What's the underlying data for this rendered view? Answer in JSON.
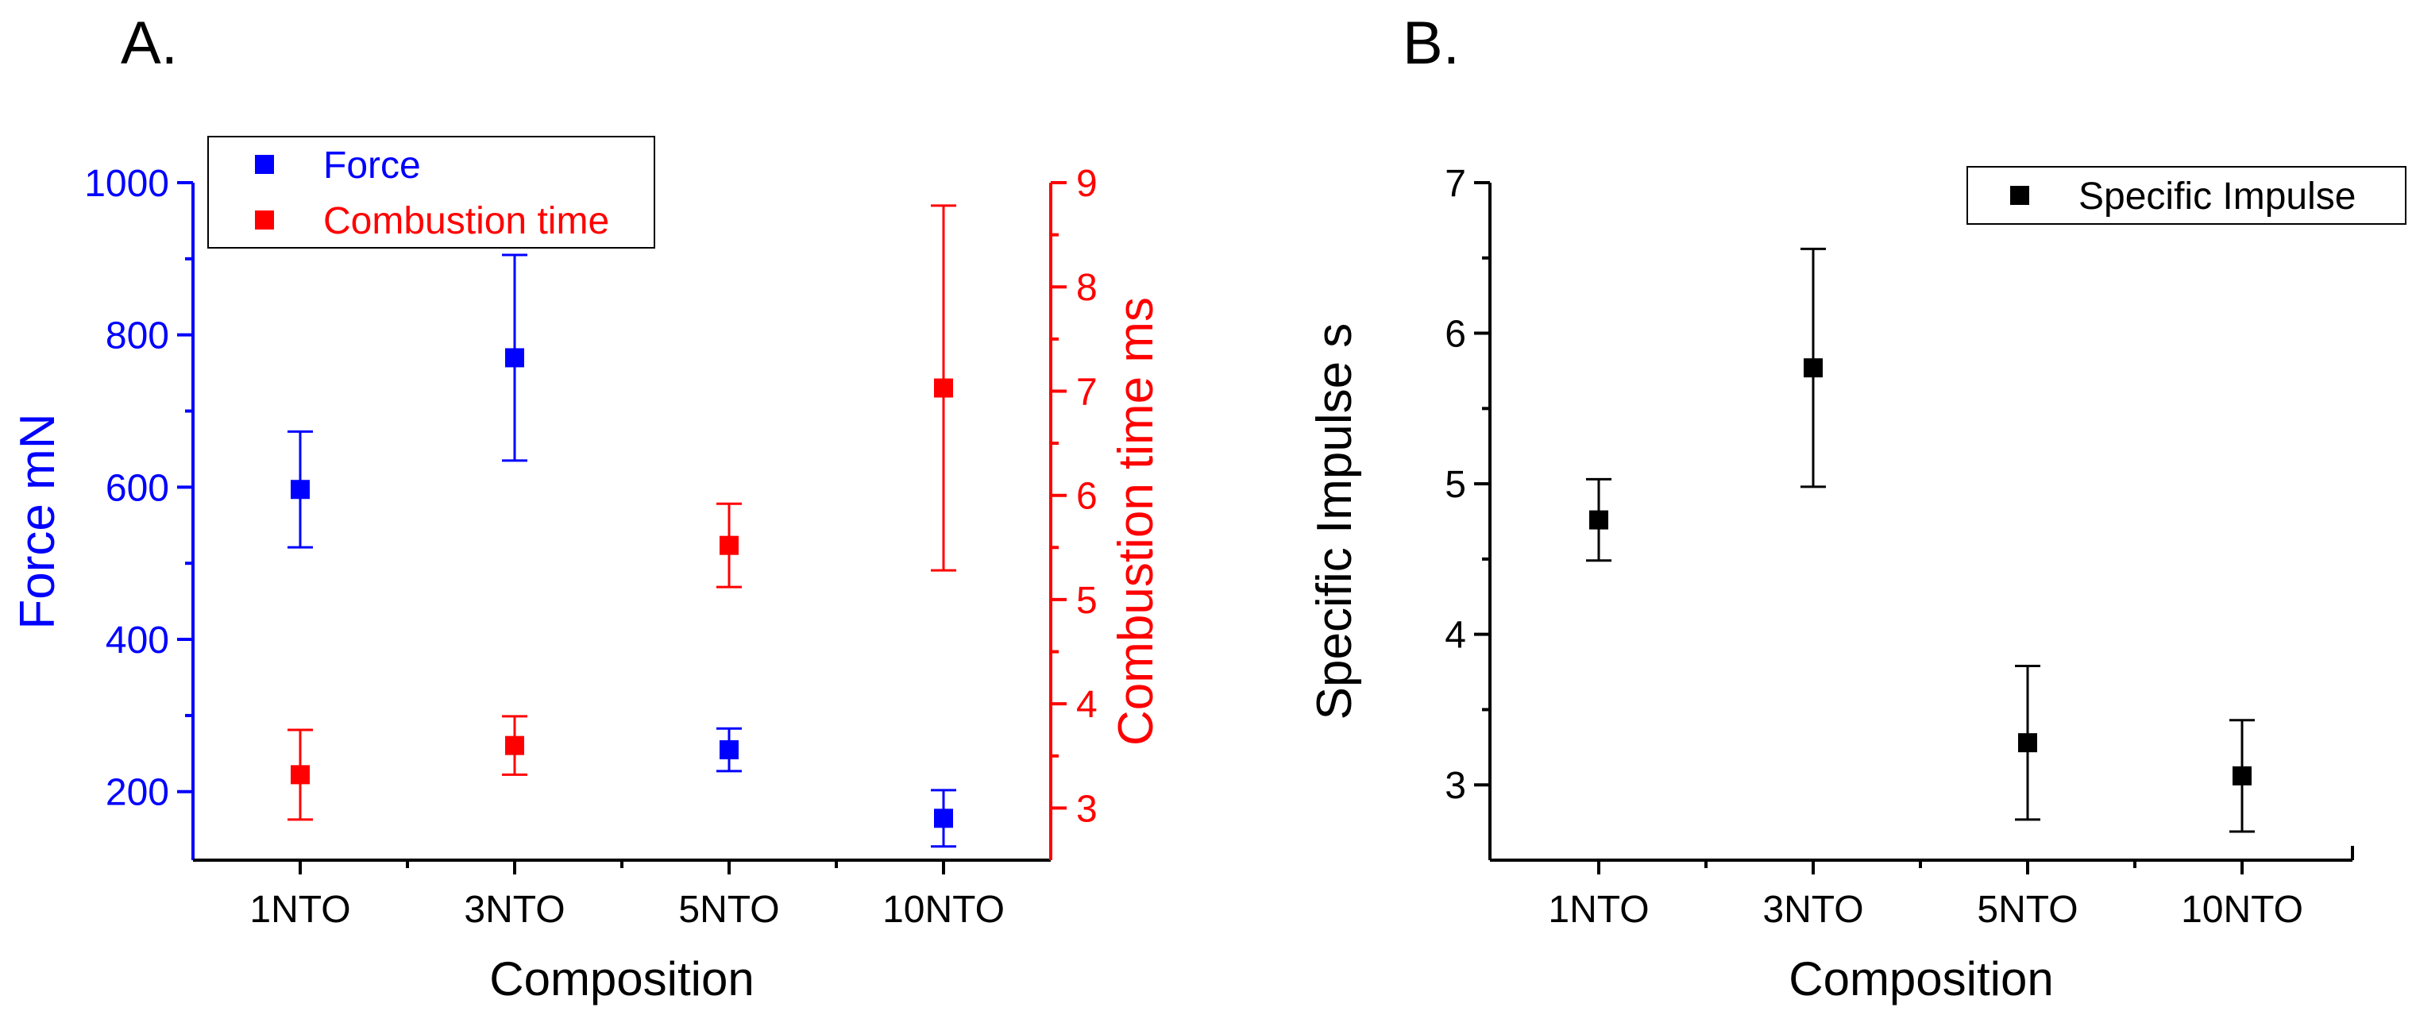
{
  "chart_data": [
    {
      "panel_label": "A.",
      "type": "scatter",
      "categories": [
        "1NTO",
        "3NTO",
        "5NTO",
        "10NTO"
      ],
      "xlabel": "Composition",
      "axes": {
        "left": {
          "label": "Force mN",
          "color": "#0000ff",
          "ylim": [
            110,
            1000
          ],
          "ticks": [
            200,
            400,
            600,
            800,
            1000
          ]
        },
        "right": {
          "label": "Combustion time ms",
          "color": "#ff0000",
          "ylim": [
            2.5,
            9
          ],
          "ticks": [
            3,
            4,
            5,
            6,
            7,
            8,
            9
          ]
        }
      },
      "legend": {
        "position": "top-left"
      },
      "series": [
        {
          "name": "Force",
          "axis": "left",
          "color": "#0000ff",
          "values": [
            597,
            770,
            255,
            165
          ],
          "errors": [
            76,
            135,
            28,
            37
          ]
        },
        {
          "name": "Combustion time",
          "axis": "right",
          "color": "#ff0000",
          "values": [
            3.32,
            3.6,
            5.52,
            7.03
          ],
          "errors": [
            0.43,
            0.28,
            0.4,
            1.75
          ]
        }
      ]
    },
    {
      "panel_label": "B.",
      "type": "scatter",
      "categories": [
        "1NTO",
        "3NTO",
        "5NTO",
        "10NTO"
      ],
      "xlabel": "Composition",
      "ylabel": "Specific Impulse s",
      "ylim": [
        2.5,
        7
      ],
      "yticks": [
        3,
        4,
        5,
        6,
        7
      ],
      "legend": {
        "position": "top-right"
      },
      "series": [
        {
          "name": "Specific Impulse",
          "color": "#000000",
          "values": [
            4.76,
            5.77,
            3.28,
            3.06
          ],
          "errors": [
            0.27,
            0.79,
            0.51,
            0.37
          ]
        }
      ]
    }
  ]
}
